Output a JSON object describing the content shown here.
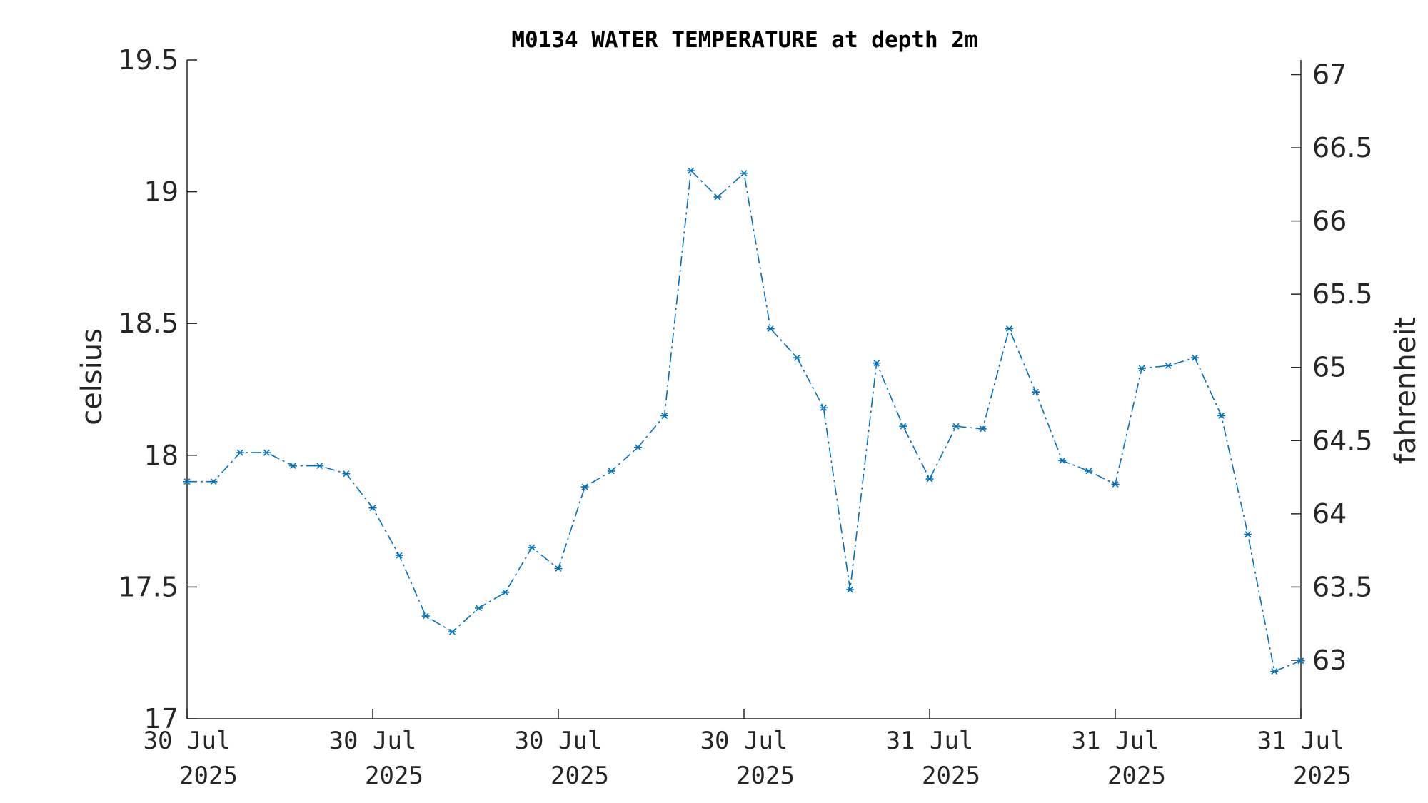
{
  "chart_data": {
    "type": "line",
    "title": "M0134 WATER TEMPERATURE at depth 2m",
    "ylabel": "celsius",
    "y2label": "fahrenheit",
    "ylim": [
      17,
      19.5
    ],
    "y2lim": [
      62.6,
      67.1
    ],
    "yticks": [
      "17",
      "17.5",
      "18",
      "18.5",
      "19",
      "19.5"
    ],
    "y2ticks": [
      "63",
      "63.5",
      "64",
      "64.5",
      "65",
      "65.5",
      "66",
      "66.5",
      "67"
    ],
    "xticks": [
      [
        "30 Jul",
        "2025"
      ],
      [
        "30 Jul",
        "2025"
      ],
      [
        "30 Jul",
        "2025"
      ],
      [
        "30 Jul",
        "2025"
      ],
      [
        "31 Jul",
        "2025"
      ],
      [
        "31 Jul",
        "2025"
      ],
      [
        "31 Jul",
        "2025"
      ]
    ],
    "grid": false,
    "marker": "asterisk",
    "line_style": "dash-dot",
    "color": "#0072BD",
    "series": [
      {
        "values": [
          17.9,
          17.9,
          18.01,
          18.01,
          17.96,
          17.96,
          17.93,
          17.8,
          17.62,
          17.39,
          17.33,
          17.42,
          17.48,
          17.65,
          17.57,
          17.88,
          17.94,
          18.03,
          18.15,
          19.08,
          18.98,
          19.07,
          18.48,
          18.37,
          18.18,
          17.49,
          18.35,
          18.11,
          17.91,
          18.11,
          18.1,
          18.48,
          18.24,
          17.98,
          17.94,
          17.89,
          18.33,
          18.34,
          18.37,
          18.15,
          17.7,
          17.18,
          17.22
        ]
      }
    ]
  }
}
